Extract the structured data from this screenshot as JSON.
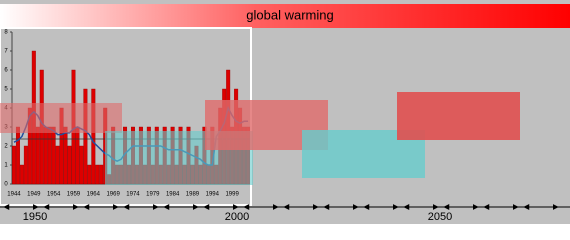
{
  "header": {
    "title": "global warming"
  },
  "chart_data": {
    "type": "bar",
    "categories": [
      "1944",
      null,
      null,
      null,
      null,
      "1949",
      null,
      null,
      null,
      null,
      "1954",
      null,
      null,
      null,
      null,
      "1959",
      null,
      null,
      null,
      null,
      "1964",
      null,
      null,
      null,
      null,
      "1969",
      null,
      null,
      null,
      null,
      "1974",
      null,
      null,
      null,
      null,
      "1979",
      null,
      null,
      null,
      null,
      "1984",
      null,
      null,
      null,
      null,
      "1989",
      null,
      null,
      null,
      null,
      "1994",
      null,
      null,
      null,
      null,
      "1999",
      null,
      null,
      null,
      null
    ],
    "values": [
      2,
      3,
      1,
      2,
      4,
      7,
      3,
      6,
      3,
      3,
      3,
      2,
      4,
      3,
      2,
      6,
      3,
      2,
      5,
      1,
      5,
      1,
      1,
      4,
      0.5,
      3,
      1,
      1,
      3,
      1,
      3,
      1,
      3,
      1,
      3,
      1,
      3,
      1,
      3,
      1,
      3,
      1,
      3,
      1,
      3,
      1,
      2,
      1,
      3,
      1,
      3,
      1,
      4,
      5,
      6,
      3,
      5,
      4,
      3,
      3
    ],
    "color": "#dd0000",
    "series": [
      {
        "values": [
          2.2,
          2.3,
          2.5,
          3,
          3.6,
          3.8,
          3.6,
          3.2,
          3,
          2.9,
          2.8,
          2.6,
          2.6,
          2.7,
          2.7,
          2.9,
          3,
          2.9,
          2.8,
          2.6,
          2.2,
          2,
          1.8,
          1.6,
          1.5,
          1.3,
          1.2,
          1.3,
          1.6,
          1.8,
          2,
          2,
          2,
          2,
          2,
          2,
          2,
          2,
          1.9,
          1.8,
          1.8,
          1.8,
          1.8,
          1.7,
          1.6,
          1.5,
          1.4,
          1.3,
          1.1,
          1,
          1,
          2.5,
          2.8,
          3.2,
          4,
          3.6,
          3.3,
          3.2,
          3.3,
          3.3
        ],
        "color": "#1f4f9f"
      }
    ],
    "ylim": [
      0,
      8
    ],
    "yticks": [
      0,
      1,
      2,
      3,
      4,
      5,
      6,
      7,
      8
    ]
  },
  "timeline": {
    "labels": [
      "1950",
      "2000",
      "2050"
    ]
  }
}
